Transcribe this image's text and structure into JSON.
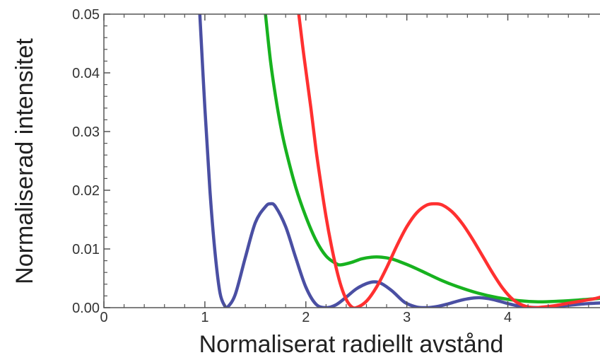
{
  "chart_data": {
    "type": "line",
    "title": "",
    "xlabel": "Normaliserat radiellt avstånd",
    "ylabel": "Normaliserad intensitet",
    "xlim": [
      0,
      4.92
    ],
    "ylim": [
      0,
      0.05
    ],
    "x_ticks": [
      0,
      1,
      2,
      3,
      4
    ],
    "x_tick_labels": [
      "0",
      "1",
      "2",
      "3",
      "4"
    ],
    "y_ticks": [
      0,
      0.01,
      0.02,
      0.03,
      0.04,
      0.05
    ],
    "y_tick_labels": [
      "0.00",
      "0.01",
      "0.02",
      "0.03",
      "0.04",
      "0.05"
    ],
    "grid": false,
    "legend": "none",
    "series": [
      {
        "color": "#4a4fa3",
        "x": [
          0.95,
          1.0,
          1.05,
          1.1,
          1.15,
          1.2,
          1.22,
          1.3,
          1.4,
          1.5,
          1.6,
          1.65,
          1.7,
          1.8,
          1.9,
          2.0,
          2.1,
          2.2,
          2.3,
          2.4,
          2.5,
          2.6,
          2.68,
          2.75,
          2.85,
          2.95,
          3.0,
          3.1,
          3.2,
          3.3,
          3.4,
          3.5,
          3.6,
          3.72,
          3.85,
          4.0,
          4.1,
          4.2,
          4.3,
          4.4,
          4.6,
          4.8,
          4.92
        ],
        "y": [
          0.05,
          0.034,
          0.02,
          0.0095,
          0.0025,
          0.0002,
          0.0,
          0.0022,
          0.0085,
          0.0145,
          0.0172,
          0.0177,
          0.0172,
          0.0138,
          0.0085,
          0.0035,
          0.0006,
          0.0,
          0.0005,
          0.0018,
          0.0032,
          0.0041,
          0.0044,
          0.0041,
          0.0029,
          0.0013,
          0.0007,
          0.0001,
          0.0,
          0.0002,
          0.0006,
          0.0011,
          0.0015,
          0.0017,
          0.0014,
          0.0007,
          0.0003,
          0.0001,
          0.0,
          0.0001,
          0.0004,
          0.0007,
          0.0008
        ]
      },
      {
        "color": "#17b21f",
        "x": [
          1.6,
          1.65,
          1.7,
          1.75,
          1.8,
          1.9,
          2.0,
          2.1,
          2.2,
          2.3,
          2.35,
          2.45,
          2.55,
          2.65,
          2.75,
          2.85,
          2.95,
          3.05,
          3.2,
          3.35,
          3.5,
          3.7,
          3.9,
          4.1,
          4.3,
          4.5,
          4.7,
          4.92
        ],
        "y": [
          0.05,
          0.042,
          0.036,
          0.031,
          0.027,
          0.0205,
          0.0155,
          0.0115,
          0.0088,
          0.0075,
          0.0073,
          0.0077,
          0.0083,
          0.0086,
          0.0086,
          0.0083,
          0.0077,
          0.007,
          0.0058,
          0.0046,
          0.0036,
          0.0025,
          0.0017,
          0.0012,
          0.001,
          0.0011,
          0.0013,
          0.0016
        ]
      },
      {
        "color": "#ff3030",
        "x": [
          1.93,
          1.98,
          2.05,
          2.1,
          2.15,
          2.2,
          2.25,
          2.3,
          2.35,
          2.4,
          2.45,
          2.5,
          2.6,
          2.7,
          2.8,
          2.9,
          3.0,
          3.1,
          3.2,
          3.28,
          3.35,
          3.45,
          3.55,
          3.65,
          3.75,
          3.85,
          3.95,
          4.05,
          4.15,
          4.25,
          4.35,
          4.45,
          4.55,
          4.65,
          4.75,
          4.85,
          4.92
        ],
        "y": [
          0.05,
          0.043,
          0.034,
          0.027,
          0.021,
          0.0155,
          0.0108,
          0.0068,
          0.0036,
          0.0014,
          0.0002,
          0.0,
          0.0011,
          0.0035,
          0.0068,
          0.0105,
          0.0138,
          0.0162,
          0.0175,
          0.0177,
          0.0175,
          0.0163,
          0.0143,
          0.0117,
          0.0088,
          0.0059,
          0.0033,
          0.0014,
          0.0004,
          0.0,
          0.0001,
          0.0003,
          0.0006,
          0.0009,
          0.0012,
          0.0015,
          0.0018
        ]
      }
    ]
  }
}
